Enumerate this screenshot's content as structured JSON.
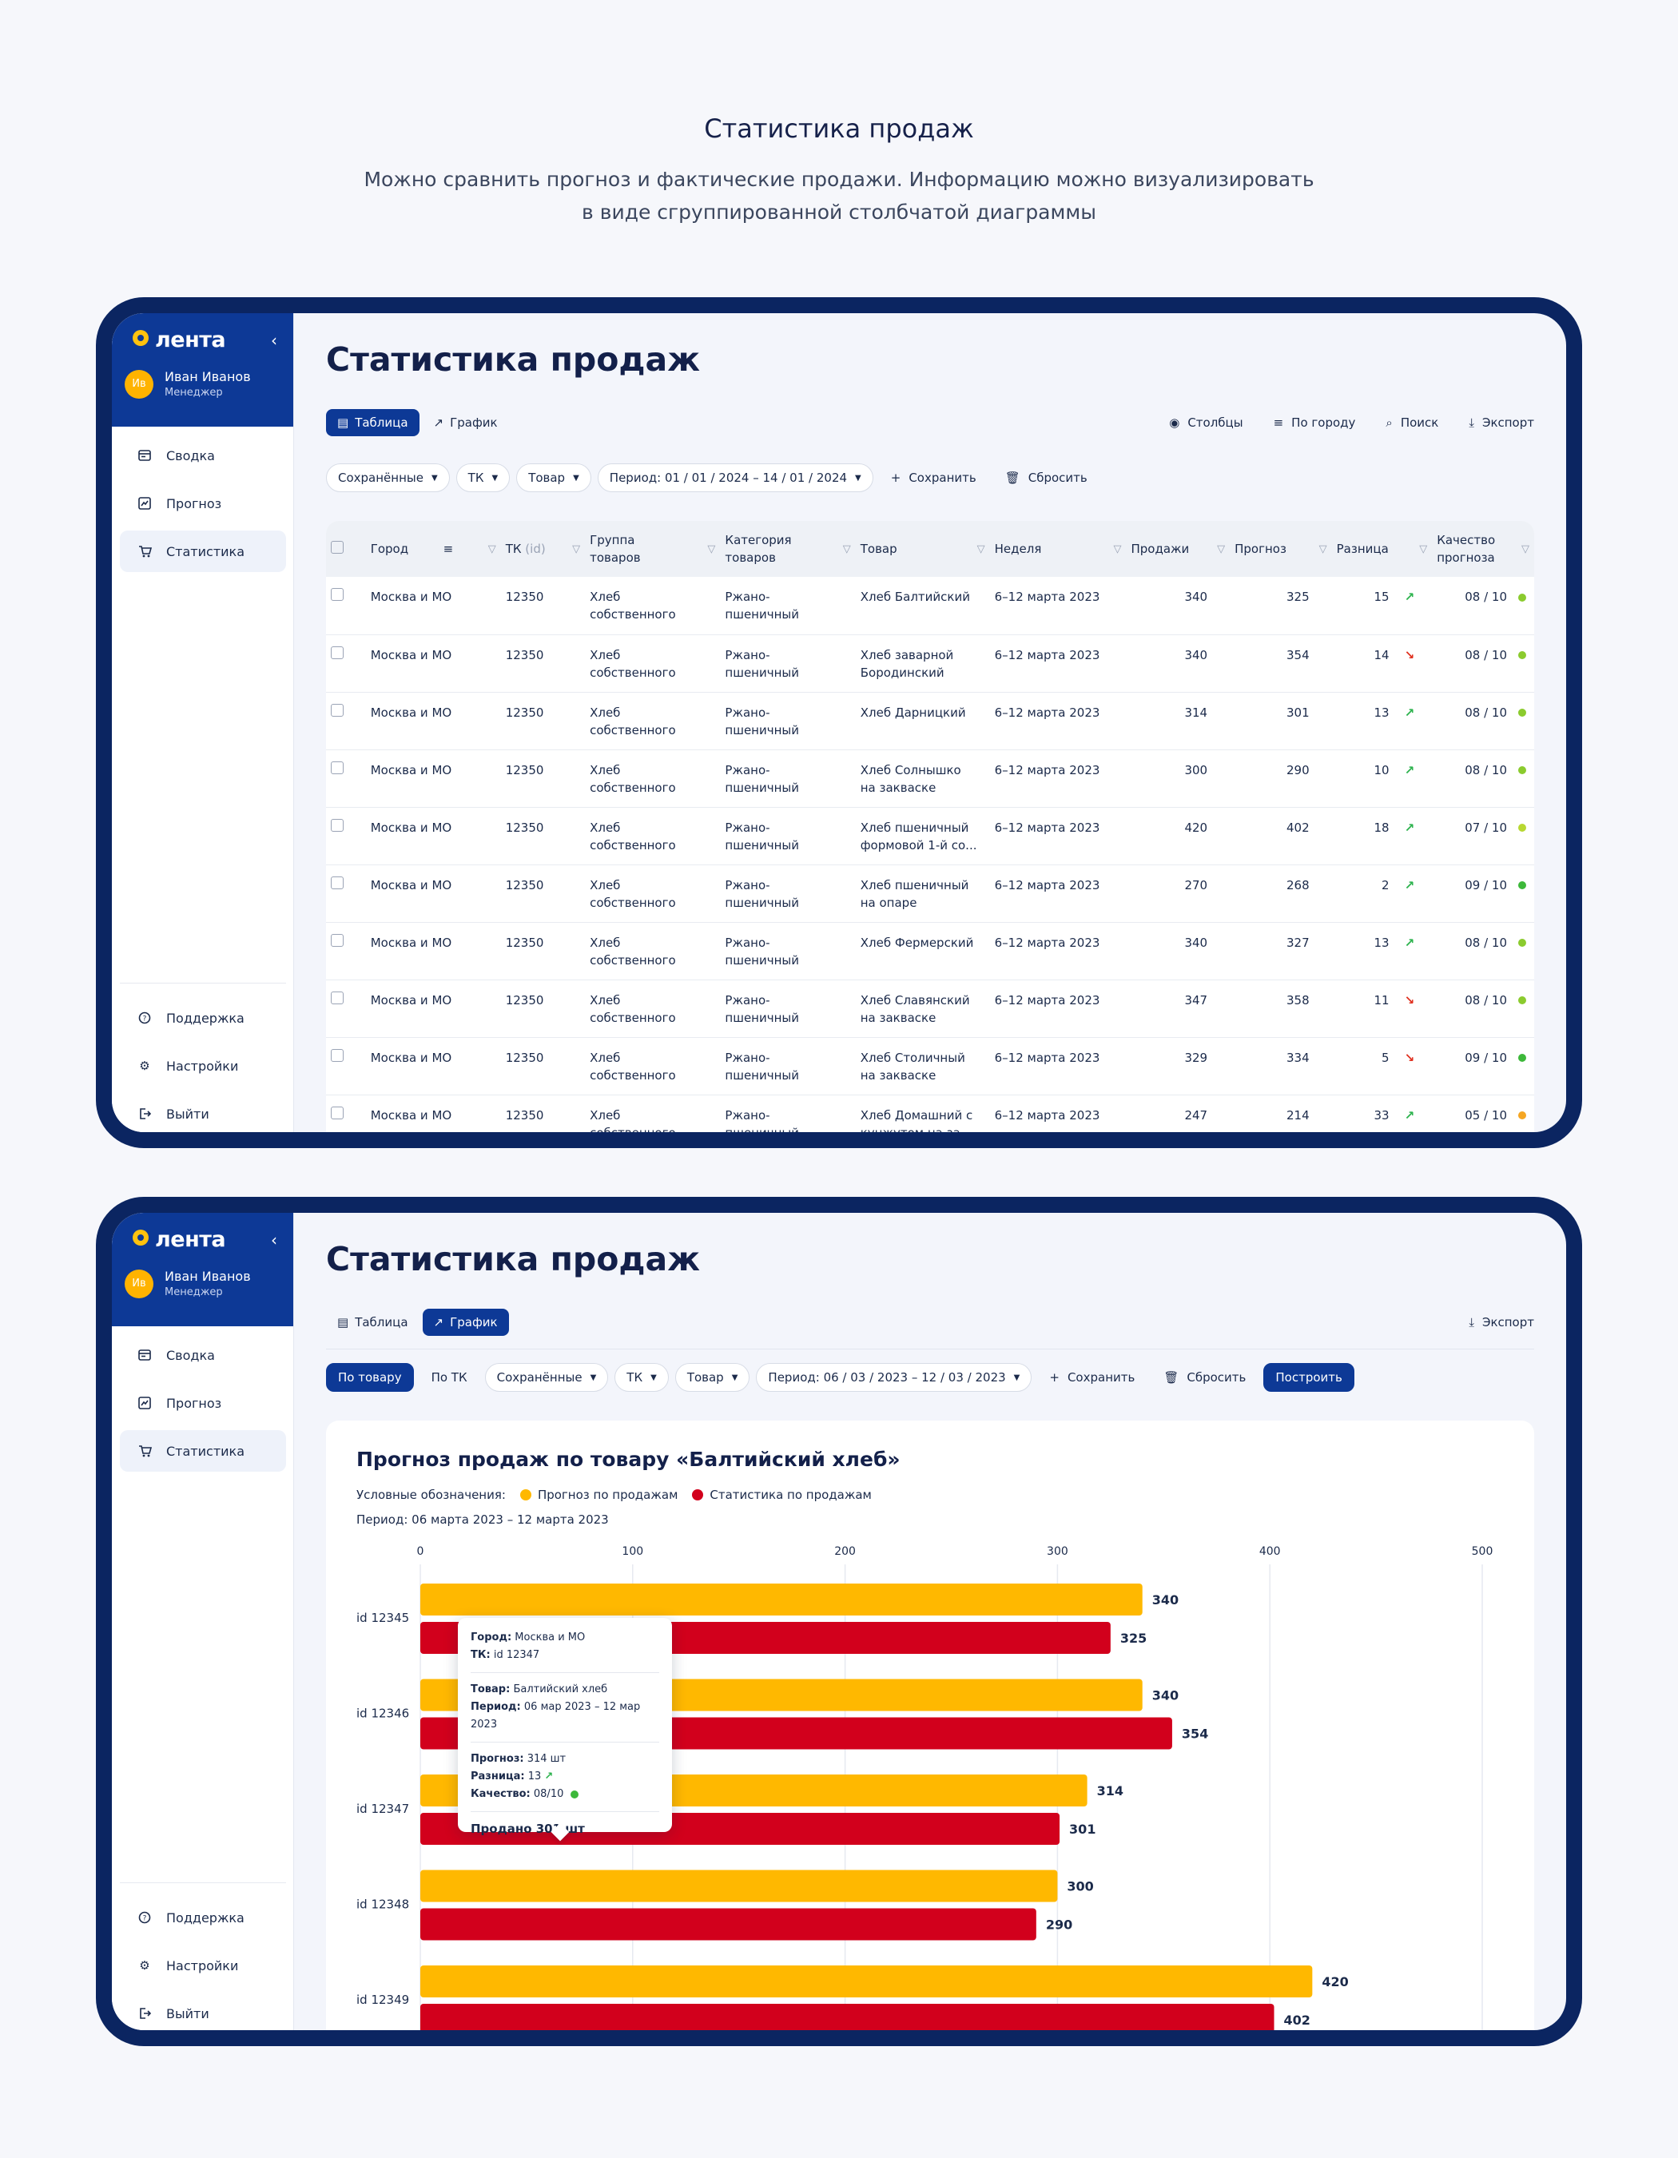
{
  "hero": {
    "title": "Статистика продаж",
    "subtitle_line1": "Можно сравнить прогноз и фактические продажи. Информацию можно визуализировать",
    "subtitle_line2": "в виде сгруппированной столбчатой диаграммы"
  },
  "sidebar": {
    "logo": "лента",
    "user_name": "Иван Иванов",
    "user_role": "Менеджер",
    "avatar_initials": "Ив",
    "nav": [
      "Сводка",
      "Прогноз",
      "Статистика"
    ],
    "bottom": [
      "Поддержка",
      "Настройки",
      "Выйти"
    ]
  },
  "page_title": "Статистика продаж",
  "view_tabs": [
    "Таблица",
    "График"
  ],
  "table_view": {
    "tools": [
      "Столбцы",
      "По городу",
      "Поиск",
      "Экспорт"
    ],
    "filters": {
      "saved": "Сохранённые",
      "tk": "ТК",
      "product": "Товар",
      "period": "Период: 01 / 01 / 2024 – 14 / 01 / 2024",
      "save": "Сохранить",
      "reset": "Сбросить"
    },
    "columns": [
      "Город",
      "ТК",
      "(id)",
      "Группа товаров",
      "Категория товаров",
      "Товар",
      "Неделя",
      "Продажи",
      "Прогноз",
      "Разница",
      "Качество прогноза"
    ],
    "rows": [
      {
        "city": "Москва и МО",
        "tk": "12350",
        "group": "Хлеб собственного пр...",
        "category": "Ржано-пшеничный",
        "product": "Хлеб Балтийский",
        "week": "6–12 марта 2023",
        "sales": "340",
        "forecast": "325",
        "diff": "15",
        "trend": "↗",
        "quality": "08 / 10",
        "qcolor": "#8BCB2E"
      },
      {
        "city": "Москва и МО",
        "tk": "12350",
        "group": "Хлеб собственного пр...",
        "category": "Ржано-пшеничный",
        "product": "Хлеб заварной Бородинский",
        "week": "6–12 марта 2023",
        "sales": "340",
        "forecast": "354",
        "diff": "14",
        "trend": "↘",
        "quality": "08 / 10",
        "qcolor": "#8BCB2E"
      },
      {
        "city": "Москва и МО",
        "tk": "12350",
        "group": "Хлеб собственного пр...",
        "category": "Ржано-пшеничный",
        "product": "Хлеб Дарницкий",
        "week": "6–12 марта 2023",
        "sales": "314",
        "forecast": "301",
        "diff": "13",
        "trend": "↗",
        "quality": "08 / 10",
        "qcolor": "#8BCB2E"
      },
      {
        "city": "Москва и МО",
        "tk": "12350",
        "group": "Хлеб собственного пр...",
        "category": "Ржано-пшеничный",
        "product": "Хлеб Солнышко на закваске",
        "week": "6–12 марта 2023",
        "sales": "300",
        "forecast": "290",
        "diff": "10",
        "trend": "↗",
        "quality": "08 / 10",
        "qcolor": "#8BCB2E"
      },
      {
        "city": "Москва и МО",
        "tk": "12350",
        "group": "Хлеб собственного пр...",
        "category": "Ржано-пшеничный",
        "product": "Хлеб пшеничный формовой 1-й со...",
        "week": "6–12 марта 2023",
        "sales": "420",
        "forecast": "402",
        "diff": "18",
        "trend": "↗",
        "quality": "07 / 10",
        "qcolor": "#B8D832"
      },
      {
        "city": "Москва и МО",
        "tk": "12350",
        "group": "Хлеб собственного пр...",
        "category": "Ржано-пшеничный",
        "product": "Хлеб пшеничный на опаре",
        "week": "6–12 марта 2023",
        "sales": "270",
        "forecast": "268",
        "diff": "2",
        "trend": "↗",
        "quality": "09 / 10",
        "qcolor": "#3DB83A"
      },
      {
        "city": "Москва и МО",
        "tk": "12350",
        "group": "Хлеб собственного пр...",
        "category": "Ржано-пшеничный",
        "product": "Хлеб Фермерский",
        "week": "6–12 марта 2023",
        "sales": "340",
        "forecast": "327",
        "diff": "13",
        "trend": "↗",
        "quality": "08 / 10",
        "qcolor": "#8BCB2E"
      },
      {
        "city": "Москва и МО",
        "tk": "12350",
        "group": "Хлеб собственного пр...",
        "category": "Ржано-пшеничный",
        "product": "Хлеб Славянский на закваске",
        "week": "6–12 марта 2023",
        "sales": "347",
        "forecast": "358",
        "diff": "11",
        "trend": "↘",
        "quality": "08 / 10",
        "qcolor": "#8BCB2E"
      },
      {
        "city": "Москва и МО",
        "tk": "12350",
        "group": "Хлеб собственного пр...",
        "category": "Ржано-пшеничный",
        "product": "Хлеб Столичный на закваске",
        "week": "6–12 марта 2023",
        "sales": "329",
        "forecast": "334",
        "diff": "5",
        "trend": "↘",
        "quality": "09 / 10",
        "qcolor": "#3DB83A"
      },
      {
        "city": "Москва и МО",
        "tk": "12350",
        "group": "Хлеб собственного пр...",
        "category": "Ржано-пшеничный",
        "product": "Хлеб Домашний с кунжутом на за...",
        "week": "6–12 марта 2023",
        "sales": "247",
        "forecast": "214",
        "diff": "33",
        "trend": "↗",
        "quality": "05 / 10",
        "qcolor": "#F5A623"
      }
    ]
  },
  "chart_view": {
    "tools": [
      "Экспорт"
    ],
    "filters": {
      "by_product": "По товару",
      "by_tk": "По ТК",
      "saved": "Сохранённые",
      "tk": "ТК",
      "product": "Товар",
      "period": "Период: 06 / 03 / 2023 – 12 / 03 / 2023",
      "save": "Сохранить",
      "reset": "Сбросить",
      "build": "Построить"
    },
    "legend_label": "Условные обозначения:",
    "period_label": "Период:",
    "period_value": "06 марта 2023 – 12 марта 2023",
    "tooltip": {
      "city_label": "Город:",
      "city": "Москва и МО",
      "tk_label": "ТК:",
      "tk": "id 12347",
      "product_label": "Товар:",
      "product": "Балтийский хлеб",
      "period_label": "Период:",
      "period": "06 мар 2023 – 12 мар 2023",
      "forecast_label": "Прогноз:",
      "forecast": "314 шт",
      "diff_label": "Разница:",
      "diff": "13",
      "quality_label": "Качество:",
      "quality": "08/10",
      "sold": "Продано 301 шт"
    }
  },
  "colors": {
    "forecast": "#FFB800",
    "sales": "#D2001C",
    "brand": "#0D3996"
  },
  "chart_data": {
    "type": "bar",
    "orientation": "horizontal",
    "title": "Прогноз продаж по товару «Балтийский хлеб»",
    "categories": [
      "id 12345",
      "id 12346",
      "id 12347",
      "id 12348",
      "id 12349"
    ],
    "series": [
      {
        "name": "Прогноз по продажам",
        "values": [
          340,
          340,
          314,
          300,
          420
        ]
      },
      {
        "name": "Статистика по продажам",
        "values": [
          325,
          354,
          301,
          290,
          402
        ]
      }
    ],
    "xlim": [
      0,
      500
    ],
    "xticks": [
      0,
      100,
      200,
      300,
      400,
      500
    ],
    "grid": true,
    "legend_position": "top-left"
  }
}
